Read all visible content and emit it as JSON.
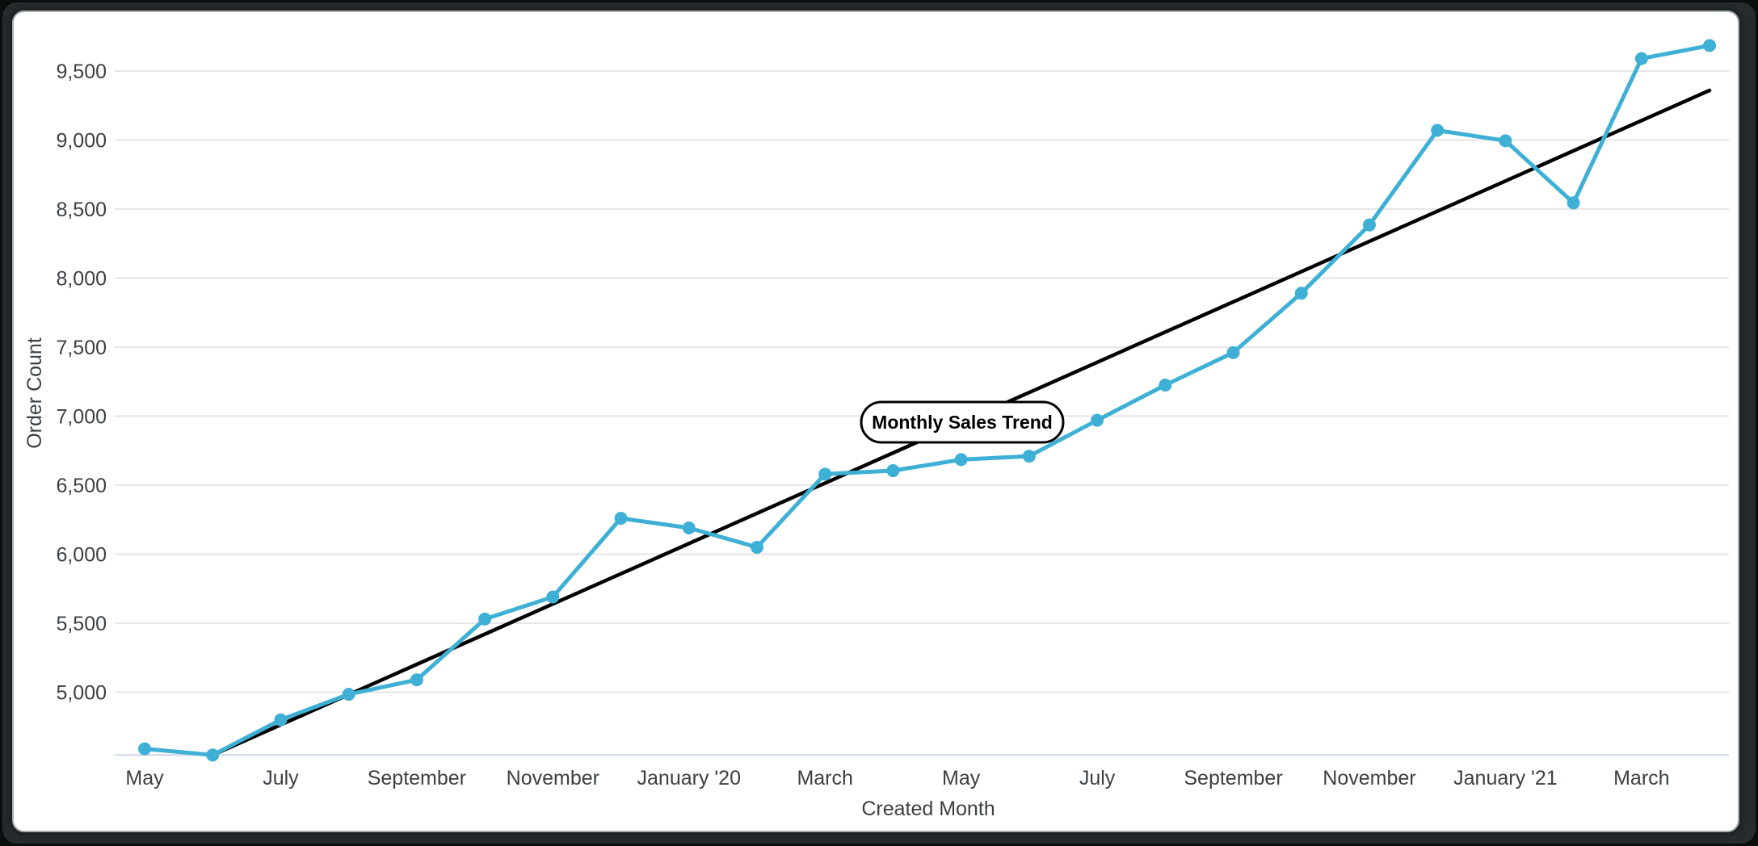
{
  "chart_data": {
    "type": "line",
    "title": "Monthly Sales Trend",
    "xlabel": "Created Month",
    "ylabel": "Order Count",
    "legend": "none",
    "grid": "horizontal-only",
    "ylim": [
      4545,
      9880
    ],
    "categories": [
      "May 2019",
      "June 2019",
      "July 2019",
      "August 2019",
      "September 2019",
      "October 2019",
      "November 2019",
      "December 2019",
      "January 2020",
      "February 2020",
      "March 2020",
      "April 2020",
      "May 2020",
      "June 2020",
      "July 2020",
      "August 2020",
      "September 2020",
      "October 2020",
      "November 2020",
      "December 2020",
      "January 2021",
      "February 2021",
      "March 2021",
      "April 2021"
    ],
    "series": [
      {
        "name": "Order Count",
        "kind": "data",
        "color": "#3EB0D5",
        "marker": "circle",
        "values": [
          4590,
          4545,
          4800,
          4985,
          5090,
          5530,
          5690,
          6260,
          6190,
          6050,
          6580,
          6605,
          6685,
          6710,
          6970,
          7225,
          7460,
          7890,
          8385,
          9070,
          8995,
          8545,
          9590,
          9685
        ]
      },
      {
        "name": "Monthly Sales Trend",
        "kind": "trendline",
        "color": "#000000",
        "start": {
          "category_index": 1,
          "value": 4545
        },
        "end": {
          "category_index": 23,
          "value": 9360
        }
      }
    ],
    "x_ticks": [
      {
        "index": 0,
        "label": "May"
      },
      {
        "index": 2,
        "label": "July"
      },
      {
        "index": 4,
        "label": "September"
      },
      {
        "index": 6,
        "label": "November"
      },
      {
        "index": 8,
        "label": "January '20"
      },
      {
        "index": 10,
        "label": "March"
      },
      {
        "index": 12,
        "label": "May"
      },
      {
        "index": 14,
        "label": "July"
      },
      {
        "index": 16,
        "label": "September"
      },
      {
        "index": 18,
        "label": "November"
      },
      {
        "index": 20,
        "label": "January '21"
      },
      {
        "index": 22,
        "label": "March"
      }
    ],
    "y_ticks": [
      {
        "value": 5000,
        "label": "5,000"
      },
      {
        "value": 5500,
        "label": "5,500"
      },
      {
        "value": 6000,
        "label": "6,000"
      },
      {
        "value": 6500,
        "label": "6,500"
      },
      {
        "value": 7000,
        "label": "7,000"
      },
      {
        "value": 7500,
        "label": "7,500"
      },
      {
        "value": 8000,
        "label": "8,000"
      },
      {
        "value": 8500,
        "label": "8,500"
      },
      {
        "value": 9000,
        "label": "9,000"
      },
      {
        "value": 9500,
        "label": "9,500"
      }
    ],
    "annotation": {
      "label": "Monthly Sales Trend",
      "attached_to": "trendline-midpoint"
    }
  },
  "colors": {
    "series_line": "#3EB0D5",
    "trend_line": "#000000",
    "gridline": "#E6E6E6",
    "axis_baseline": "#CCD6EB",
    "tick_text": "#3C4043",
    "card_background": "#FFFFFF",
    "frame_background": "#262C2E"
  }
}
